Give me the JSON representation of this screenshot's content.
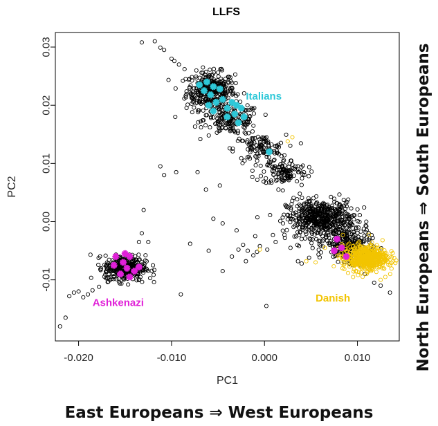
{
  "chart_data": {
    "type": "scatter",
    "title": "LLFS",
    "xlabel": "PC1",
    "ylabel": "PC2",
    "xlim": [
      -0.0225,
      0.0145
    ],
    "ylim": [
      -0.0205,
      0.0325
    ],
    "x_ticks": [
      -0.02,
      -0.01,
      0.0,
      0.01
    ],
    "x_tick_labels": [
      "-0.020",
      "-0.010",
      "0.000",
      "0.010"
    ],
    "y_ticks": [
      -0.01,
      0.0,
      0.01,
      0.02,
      0.03
    ],
    "y_tick_labels": [
      "-0.01",
      "0.00",
      "0.01",
      "0.02",
      "0.03"
    ],
    "grid": false,
    "legend": "none",
    "colors": {
      "all": "#000000",
      "italians": "#2ec8d8",
      "ashkenazi": "#e020d8",
      "danish": "#f2c400"
    },
    "annotations": [
      {
        "text": "Italians",
        "x": -0.002,
        "y": 0.021,
        "color": "#2ec8d8"
      },
      {
        "text": "Ashkenazi",
        "x": -0.0185,
        "y": -0.0145,
        "color": "#e020d8"
      },
      {
        "text": "Danish",
        "x": 0.0055,
        "y": -0.0137,
        "color": "#f2c400"
      }
    ],
    "series": [
      {
        "marker": "open-circle",
        "color": "#000000",
        "clusters": [
          {
            "cx": -0.0058,
            "cy": 0.0225,
            "sx": 0.0013,
            "sy": 0.0016,
            "n": 340
          },
          {
            "cx": -0.0035,
            "cy": 0.0175,
            "sx": 0.0015,
            "sy": 0.0013,
            "n": 160
          },
          {
            "cx": -0.0005,
            "cy": 0.0125,
            "sx": 0.0014,
            "sy": 0.0012,
            "n": 110
          },
          {
            "cx": 0.0022,
            "cy": 0.0085,
            "sx": 0.0012,
            "sy": 0.0011,
            "n": 110
          },
          {
            "cx": 0.006,
            "cy": 0.0005,
            "sx": 0.0018,
            "sy": 0.0016,
            "n": 520
          },
          {
            "cx": 0.009,
            "cy": -0.004,
            "sx": 0.0012,
            "sy": 0.0014,
            "n": 240
          },
          {
            "cx": -0.015,
            "cy": -0.008,
            "sx": 0.0011,
            "sy": 0.0011,
            "n": 360
          }
        ],
        "points": [
          [
            -0.0132,
            0.0308
          ],
          [
            -0.0118,
            0.031
          ],
          [
            -0.0108,
            0.0295
          ],
          [
            -0.0112,
            0.0299
          ],
          [
            -0.01,
            0.028
          ],
          [
            -0.0092,
            0.027
          ],
          [
            -0.0086,
            0.0262
          ],
          [
            -0.0097,
            0.0276
          ],
          [
            -0.0112,
            0.0095
          ],
          [
            -0.0095,
            0.0085
          ],
          [
            -0.0108,
            0.008
          ],
          [
            -0.0072,
            0.0085
          ],
          [
            -0.0063,
            0.0055
          ],
          [
            -0.0048,
            0.0062
          ],
          [
            -0.0096,
            0.018
          ],
          [
            -0.013,
            0.002
          ],
          [
            -0.009,
            -0.0125
          ],
          [
            -0.008,
            -0.0038
          ],
          [
            -0.0055,
            0.0005
          ],
          [
            -0.0045,
            -0.0003
          ],
          [
            -0.003,
            -0.0015
          ],
          [
            -0.001,
            -0.0025
          ],
          [
            -0.0005,
            -0.0042
          ],
          [
            -0.002,
            -0.0068
          ],
          [
            -0.0045,
            -0.0085
          ],
          [
            -0.0028,
            -0.0048
          ],
          [
            -0.0012,
            -0.0058
          ],
          [
            -0.0018,
            -0.005
          ],
          [
            -0.0023,
            -0.004
          ],
          [
            -0.0035,
            -0.006
          ],
          [
            -0.0008,
            -0.0052
          ],
          [
            0.0003,
            -0.0048
          ],
          [
            0.0012,
            -0.0035
          ],
          [
            0.0022,
            -0.0028
          ],
          [
            0.0028,
            -0.0045
          ],
          [
            0.0036,
            -0.0068
          ],
          [
            0.0048,
            -0.0062
          ],
          [
            0.004,
            -0.0072
          ],
          [
            0.0002,
            -0.0145
          ],
          [
            0.0118,
            -0.0105
          ],
          [
            0.0135,
            -0.0122
          ],
          [
            0.0108,
            -0.009
          ],
          [
            0.0125,
            -0.011
          ],
          [
            -0.006,
            -0.005
          ],
          [
            -0.02,
            -0.012
          ],
          [
            -0.0195,
            -0.013
          ],
          [
            -0.0205,
            -0.0122
          ],
          [
            -0.021,
            -0.0128
          ],
          [
            -0.0214,
            -0.0165
          ],
          [
            -0.022,
            -0.018
          ],
          [
            -0.0185,
            -0.0118
          ],
          [
            -0.0178,
            -0.0112
          ],
          [
            -0.019,
            -0.0125
          ],
          [
            -0.0123,
            -0.0097
          ],
          [
            -0.0125,
            -0.0035
          ],
          [
            -0.012,
            -0.0075
          ],
          [
            -0.0135,
            -0.0035
          ],
          [
            -0.0132,
            -0.002
          ],
          [
            0.004,
            0.0063
          ],
          [
            0.0038,
            0.0048
          ],
          [
            0.0015,
            0.0055
          ],
          [
            0.001,
            0.0105
          ],
          [
            0.003,
            0.0098
          ]
        ]
      },
      {
        "name": "Italians",
        "marker": "star",
        "color": "#2ec8d8",
        "points": [
          [
            -0.007,
            0.0235
          ],
          [
            -0.0062,
            0.024
          ],
          [
            -0.0055,
            0.0232
          ],
          [
            -0.0065,
            0.0225
          ],
          [
            -0.0058,
            0.0218
          ],
          [
            -0.0048,
            0.0228
          ],
          [
            -0.0052,
            0.0205
          ],
          [
            -0.006,
            0.02
          ],
          [
            -0.0045,
            0.021
          ],
          [
            -0.0035,
            0.0205
          ],
          [
            -0.004,
            0.0195
          ],
          [
            -0.003,
            0.02
          ],
          [
            -0.0025,
            0.0195
          ],
          [
            -0.0032,
            0.0185
          ],
          [
            -0.0022,
            0.018
          ],
          [
            -0.0028,
            0.017
          ],
          [
            -0.004,
            0.018
          ],
          [
            -0.0055,
            0.019
          ],
          [
            0.0005,
            0.012
          ]
        ]
      },
      {
        "name": "Ashkenazi",
        "marker": "star",
        "color": "#e020d8",
        "points": [
          [
            -0.016,
            -0.006
          ],
          [
            -0.0152,
            -0.007
          ],
          [
            -0.0145,
            -0.006
          ],
          [
            -0.0148,
            -0.008
          ],
          [
            -0.014,
            -0.0085
          ],
          [
            -0.0155,
            -0.009
          ],
          [
            -0.0162,
            -0.0075
          ],
          [
            -0.0145,
            -0.0095
          ],
          [
            -0.0135,
            -0.0078
          ],
          [
            -0.015,
            -0.0055
          ]
        ]
      },
      {
        "name": "Danish",
        "marker": "open-circle",
        "color": "#f2c400",
        "clusters": [
          {
            "cx": 0.0108,
            "cy": -0.0062,
            "sx": 0.0012,
            "sy": 0.0011,
            "n": 520
          }
        ],
        "points": [
          [
            0.003,
            0.0145
          ],
          [
            0.0025,
            0.0138
          ],
          [
            0.0045,
            -0.0068
          ],
          [
            0.0055,
            -0.007
          ],
          [
            0.0065,
            -0.0045
          ],
          [
            -0.0005,
            -0.0048
          ],
          [
            0.0125,
            -0.01
          ],
          [
            0.013,
            -0.0095
          ],
          [
            0.0135,
            -0.0075
          ]
        ]
      },
      {
        "name": "Ashkenazi-core",
        "marker": "star",
        "color": "#e020d8",
        "points": [
          [
            0.0078,
            -0.003
          ],
          [
            0.0083,
            -0.0045
          ],
          [
            0.0088,
            -0.006
          ],
          [
            0.0075,
            -0.005
          ]
        ]
      }
    ]
  },
  "captions": {
    "bottom": "East Europeans ⇒ West Europeans",
    "right": "North Europeans ⇒ South Europeans"
  }
}
